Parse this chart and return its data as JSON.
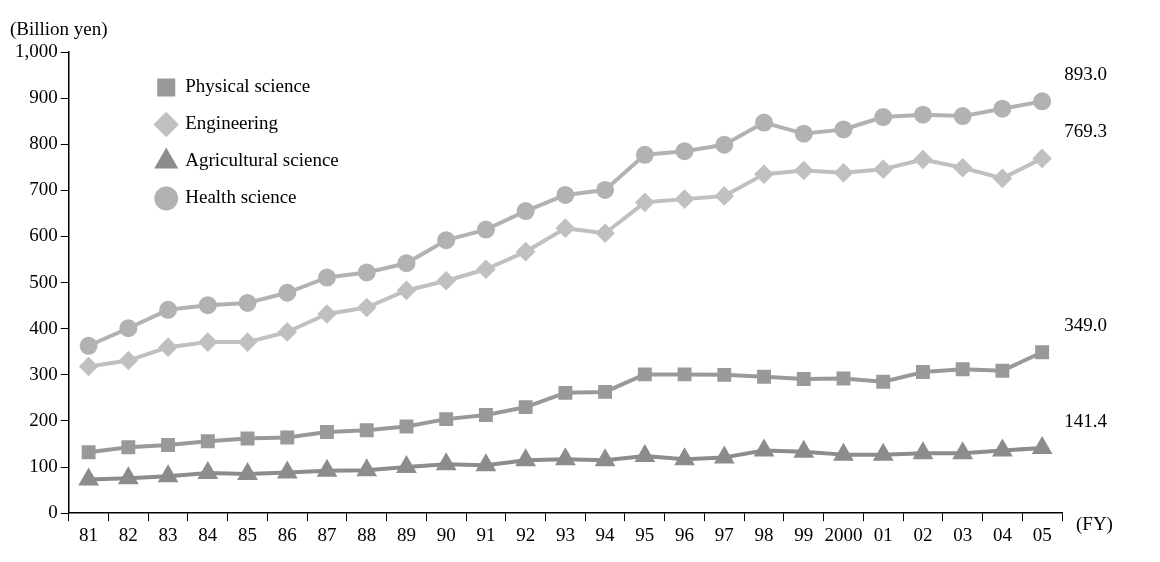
{
  "chart_data": {
    "type": "line",
    "ylabel": "(Billion yen)",
    "xlabel": "(FY)",
    "categories": [
      "81",
      "82",
      "83",
      "84",
      "85",
      "86",
      "87",
      "88",
      "89",
      "90",
      "91",
      "92",
      "93",
      "94",
      "95",
      "96",
      "97",
      "98",
      "99",
      "2000",
      "01",
      "02",
      "03",
      "04",
      "05"
    ],
    "ylim": [
      0,
      1000
    ],
    "yticks": [
      0,
      100,
      200,
      300,
      400,
      500,
      600,
      700,
      800,
      900,
      {
        "value": 1000,
        "label": "1,000"
      }
    ],
    "grid": false,
    "legend": "top left",
    "series": [
      {
        "name": "Physical science",
        "color": "#999999",
        "marker": "square",
        "values": [
          132,
          143,
          148,
          156,
          162,
          164,
          176,
          180,
          188,
          204,
          213,
          230,
          261,
          263,
          301,
          301,
          300,
          296,
          291,
          292,
          285,
          306,
          312,
          309,
          349.0
        ],
        "value_labels": [
          null,
          null,
          null,
          null,
          null,
          null,
          null,
          null,
          null,
          null,
          null,
          null,
          null,
          null,
          null,
          null,
          null,
          null,
          null,
          null,
          null,
          null,
          null,
          null,
          "349.0"
        ]
      },
      {
        "name": "Engineering",
        "color": "#c0c0c0",
        "marker": "diamond",
        "values": [
          318,
          331,
          360,
          371,
          371,
          393,
          432,
          446,
          483,
          504,
          529,
          567,
          618,
          607,
          674,
          681,
          688,
          735,
          743,
          738,
          746,
          767,
          749,
          726,
          769.3
        ],
        "value_labels": [
          null,
          null,
          null,
          null,
          null,
          null,
          null,
          null,
          null,
          null,
          null,
          null,
          null,
          null,
          null,
          null,
          null,
          null,
          null,
          null,
          null,
          null,
          null,
          null,
          "769.3"
        ]
      },
      {
        "name": "Agricultural science",
        "color": "#8c8c8c",
        "marker": "triangle",
        "values": [
          73,
          76,
          80,
          87,
          85,
          88,
          92,
          93,
          100,
          106,
          104,
          115,
          117,
          115,
          124,
          117,
          121,
          136,
          133,
          127,
          127,
          130,
          130,
          136,
          141.4
        ],
        "value_labels": [
          null,
          null,
          null,
          null,
          null,
          null,
          null,
          null,
          null,
          null,
          null,
          null,
          null,
          null,
          null,
          null,
          null,
          null,
          null,
          null,
          null,
          null,
          null,
          null,
          "141.4"
        ]
      },
      {
        "name": "Health science",
        "color": "#b2b2b2",
        "marker": "circle",
        "values": [
          363,
          401,
          441,
          451,
          456,
          478,
          511,
          522,
          542,
          592,
          615,
          655,
          690,
          701,
          777,
          785,
          799,
          847,
          823,
          832,
          859,
          864,
          861,
          877,
          893.0
        ],
        "value_labels": [
          null,
          null,
          null,
          null,
          null,
          null,
          null,
          null,
          null,
          null,
          null,
          null,
          null,
          null,
          null,
          null,
          null,
          null,
          null,
          null,
          null,
          null,
          null,
          null,
          "893.0"
        ]
      }
    ]
  }
}
